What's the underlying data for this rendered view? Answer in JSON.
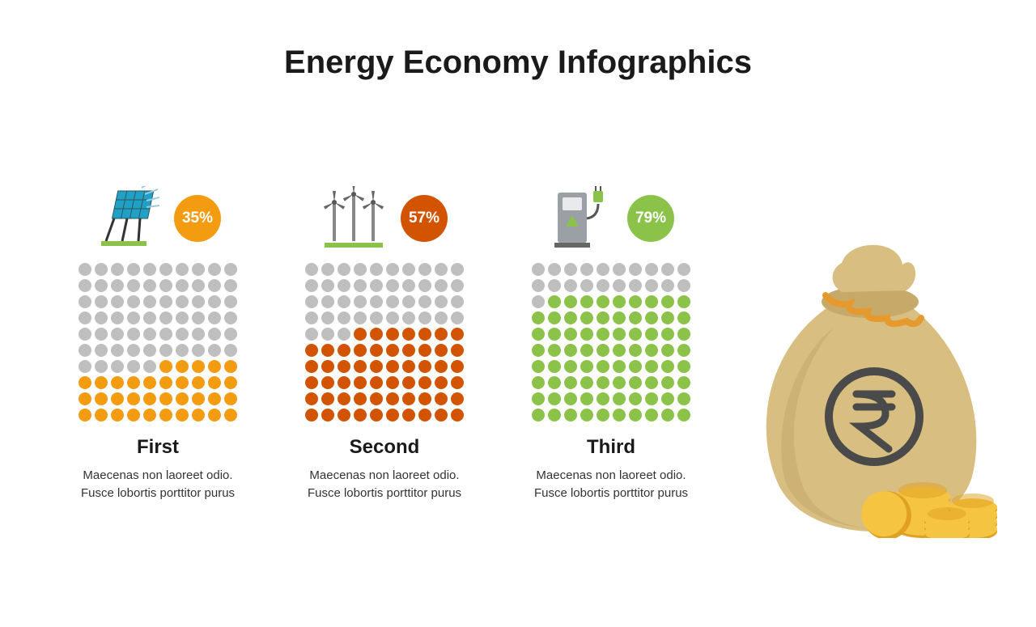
{
  "title": "Energy Economy Infographics",
  "grid": {
    "cols": 10,
    "rows": 10,
    "empty_color": "#bfbfbf",
    "dot_size": 16
  },
  "columns": [
    {
      "icon": "solar",
      "percent_label": "35%",
      "percent_value": 35,
      "badge_color": "#f39c12",
      "fill_color": "#f39c12",
      "label": "First",
      "desc": "Maecenas non laoreet odio. Fusce lobortis porttitor purus"
    },
    {
      "icon": "wind",
      "percent_label": "57%",
      "percent_value": 57,
      "badge_color": "#d35400",
      "fill_color": "#d35400",
      "label": "Second",
      "desc": "Maecenas non laoreet odio. Fusce lobortis porttitor purus"
    },
    {
      "icon": "ev",
      "percent_label": "79%",
      "percent_value": 79,
      "badge_color": "#8bc34a",
      "fill_color": "#8bc34a",
      "label": "Third",
      "desc": "Maecenas non laoreet odio. Fusce lobortis porttitor purus"
    }
  ],
  "moneybag": {
    "bag_color": "#d9be82",
    "bag_shadow": "#c7a96a",
    "rope_color": "#e69a2e",
    "symbol_color": "#4a4a4a",
    "coin_face": "#f5c542",
    "coin_edge": "#e0a020"
  },
  "typography": {
    "title_fontsize": 40,
    "label_fontsize": 24,
    "desc_fontsize": 15,
    "badge_fontsize": 19
  },
  "background_color": "#ffffff"
}
